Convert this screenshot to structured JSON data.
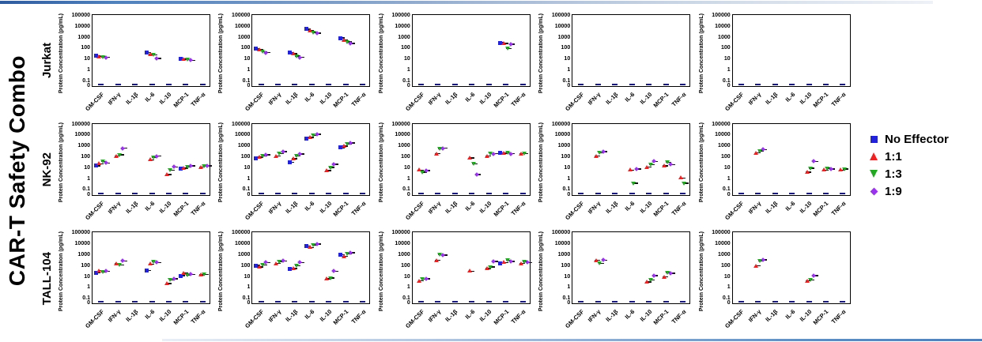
{
  "figure_title": "CAR-T Safety Combo",
  "rows": [
    "Jurkat",
    "NK-92",
    "TALL-104"
  ],
  "legend": {
    "items": [
      {
        "label": "No Effector",
        "shape": "square",
        "color": "#2222DD"
      },
      {
        "label": "1:1",
        "shape": "triangle-up",
        "color": "#EE2222"
      },
      {
        "label": "1:3",
        "shape": "triangle-down",
        "color": "#22AA22"
      },
      {
        "label": "1:9",
        "shape": "diamond",
        "color": "#9933EE"
      }
    ]
  },
  "axis": {
    "ylabel": "Protein Concentration (pg/mL)",
    "yticks": [
      "100000",
      "10000",
      "1000",
      "100",
      "10",
      "1",
      "0.1",
      "0"
    ],
    "scale": "log",
    "ymin": 0.1,
    "ymax": 100000,
    "categories": [
      "GM-CSF",
      "IFN-γ",
      "IL-1β",
      "IL-6",
      "IL-10",
      "MCP-1",
      "TNF-α"
    ]
  },
  "chart_data": {
    "type": "scatter",
    "grid": false,
    "legend_position": "right",
    "series_names": [
      "No Effector",
      "1:1",
      "1:3",
      "1:9"
    ],
    "categories": [
      "GM-CSF",
      "IFN-γ",
      "IL-1β",
      "IL-6",
      "IL-10",
      "MCP-1",
      "TNF-α"
    ],
    "plots": [
      {
        "cell_line": "Jurkat",
        "panel": 1,
        "values": {
          "GM-CSF": [
            25,
            22,
            20,
            18
          ],
          "IL-6": [
            50,
            35,
            30,
            15
          ],
          "MCP-1": [
            13,
            12,
            11,
            10
          ]
        }
      },
      {
        "cell_line": "Jurkat",
        "panel": 2,
        "values": {
          "GM-CSF": [
            110,
            90,
            60,
            50
          ],
          "IL-1β": [
            50,
            40,
            25,
            18
          ],
          "IL-6": [
            7000,
            5000,
            3500,
            3000
          ],
          "MCP-1": [
            1100,
            700,
            500,
            350
          ]
        }
      },
      {
        "cell_line": "Jurkat",
        "panel": 3,
        "values": {
          "MCP-1": [
            400,
            350,
            120,
            300
          ]
        }
      },
      {
        "cell_line": "Jurkat",
        "panel": 4,
        "values": {}
      },
      {
        "cell_line": "Jurkat",
        "panel": 5,
        "values": {}
      },
      {
        "cell_line": "NK-92",
        "panel": 1,
        "values": {
          "GM-CSF": [
            20,
            30,
            50,
            35
          ],
          "IFN-γ": [
            null,
            150,
            200,
            800
          ],
          "IL-6": [
            null,
            70,
            120,
            150
          ],
          "IL-10": [
            null,
            3,
            8,
            15
          ],
          "MCP-1": [
            10,
            12,
            15,
            20
          ],
          "TNF-α": [
            null,
            15,
            18,
            20
          ]
        }
      },
      {
        "cell_line": "NK-92",
        "panel": 2,
        "values": {
          "GM-CSF": [
            100,
            120,
            150,
            200
          ],
          "IFN-γ": [
            null,
            150,
            250,
            400
          ],
          "IL-1β": [
            40,
            90,
            150,
            230
          ],
          "IL-6": [
            6000,
            8000,
            12000,
            15000
          ],
          "IL-10": [
            null,
            7,
            14,
            28
          ],
          "MCP-1": [
            900,
            1200,
            2000,
            2500
          ]
        }
      },
      {
        "cell_line": "NK-92",
        "panel": 3,
        "values": {
          "GM-CSF": [
            null,
            8,
            5,
            7
          ],
          "IFN-γ": [
            null,
            250,
            700,
            800
          ],
          "IL-6": [
            null,
            100,
            30,
            3
          ],
          "IL-10": [
            null,
            150,
            250,
            250
          ],
          "MCP-1": [
            300,
            280,
            300,
            250
          ],
          "TNF-α": [
            null,
            250,
            250,
            null
          ]
        }
      },
      {
        "cell_line": "NK-92",
        "panel": 4,
        "values": {
          "IFN-γ": [
            null,
            150,
            300,
            400
          ],
          "IL-6": [
            null,
            8,
            0.5,
            10
          ],
          "IL-10": [
            null,
            15,
            25,
            50
          ],
          "MCP-1": [
            null,
            20,
            40,
            25
          ],
          "TNF-α": [
            null,
            1.5,
            0.5,
            null
          ]
        }
      },
      {
        "cell_line": "NK-92",
        "panel": 5,
        "values": {
          "IFN-γ": [
            null,
            300,
            450,
            600
          ],
          "IL-10": [
            null,
            5,
            12,
            50
          ],
          "MCP-1": [
            null,
            8,
            12,
            10
          ],
          "TNF-α": [
            null,
            8,
            10,
            null
          ]
        }
      },
      {
        "cell_line": "TALL-104",
        "panel": 1,
        "values": {
          "GM-CSF": [
            28,
            45,
            35,
            40
          ],
          "IFN-γ": [
            null,
            200,
            150,
            350
          ],
          "IL-6": [
            45,
            180,
            280,
            250
          ],
          "IL-10": [
            null,
            3,
            6,
            8
          ],
          "MCP-1": [
            15,
            25,
            18,
            20
          ],
          "TNF-α": [
            null,
            18,
            20,
            null
          ]
        }
      },
      {
        "cell_line": "TALL-104",
        "panel": 2,
        "values": {
          "GM-CSF": [
            130,
            100,
            150,
            250
          ],
          "IFN-γ": [
            null,
            200,
            300,
            350
          ],
          "IL-1β": [
            60,
            70,
            120,
            250
          ],
          "IL-6": [
            8000,
            6000,
            10000,
            12000
          ],
          "IL-10": [
            null,
            8,
            9,
            40
          ],
          "MCP-1": [
            1300,
            900,
            1500,
            2000
          ]
        }
      },
      {
        "cell_line": "TALL-104",
        "panel": 3,
        "values": {
          "GM-CSF": [
            null,
            5,
            7,
            8
          ],
          "IFN-γ": [
            null,
            400,
            1300,
            1200
          ],
          "IL-6": [
            null,
            40,
            null,
            null
          ],
          "IL-10": [
            null,
            70,
            100,
            300
          ],
          "MCP-1": [
            200,
            250,
            400,
            300
          ],
          "TNF-α": [
            null,
            200,
            300,
            250
          ]
        }
      },
      {
        "cell_line": "TALL-104",
        "panel": 4,
        "values": {
          "IFN-γ": [
            null,
            400,
            200,
            400
          ],
          "IL-10": [
            null,
            4,
            6,
            15
          ],
          "MCP-1": [
            null,
            12,
            30,
            25
          ]
        }
      },
      {
        "cell_line": "TALL-104",
        "panel": 5,
        "values": {
          "IFN-γ": [
            null,
            120,
            350,
            450
          ],
          "IL-10": [
            null,
            5,
            6,
            15
          ]
        }
      }
    ]
  }
}
